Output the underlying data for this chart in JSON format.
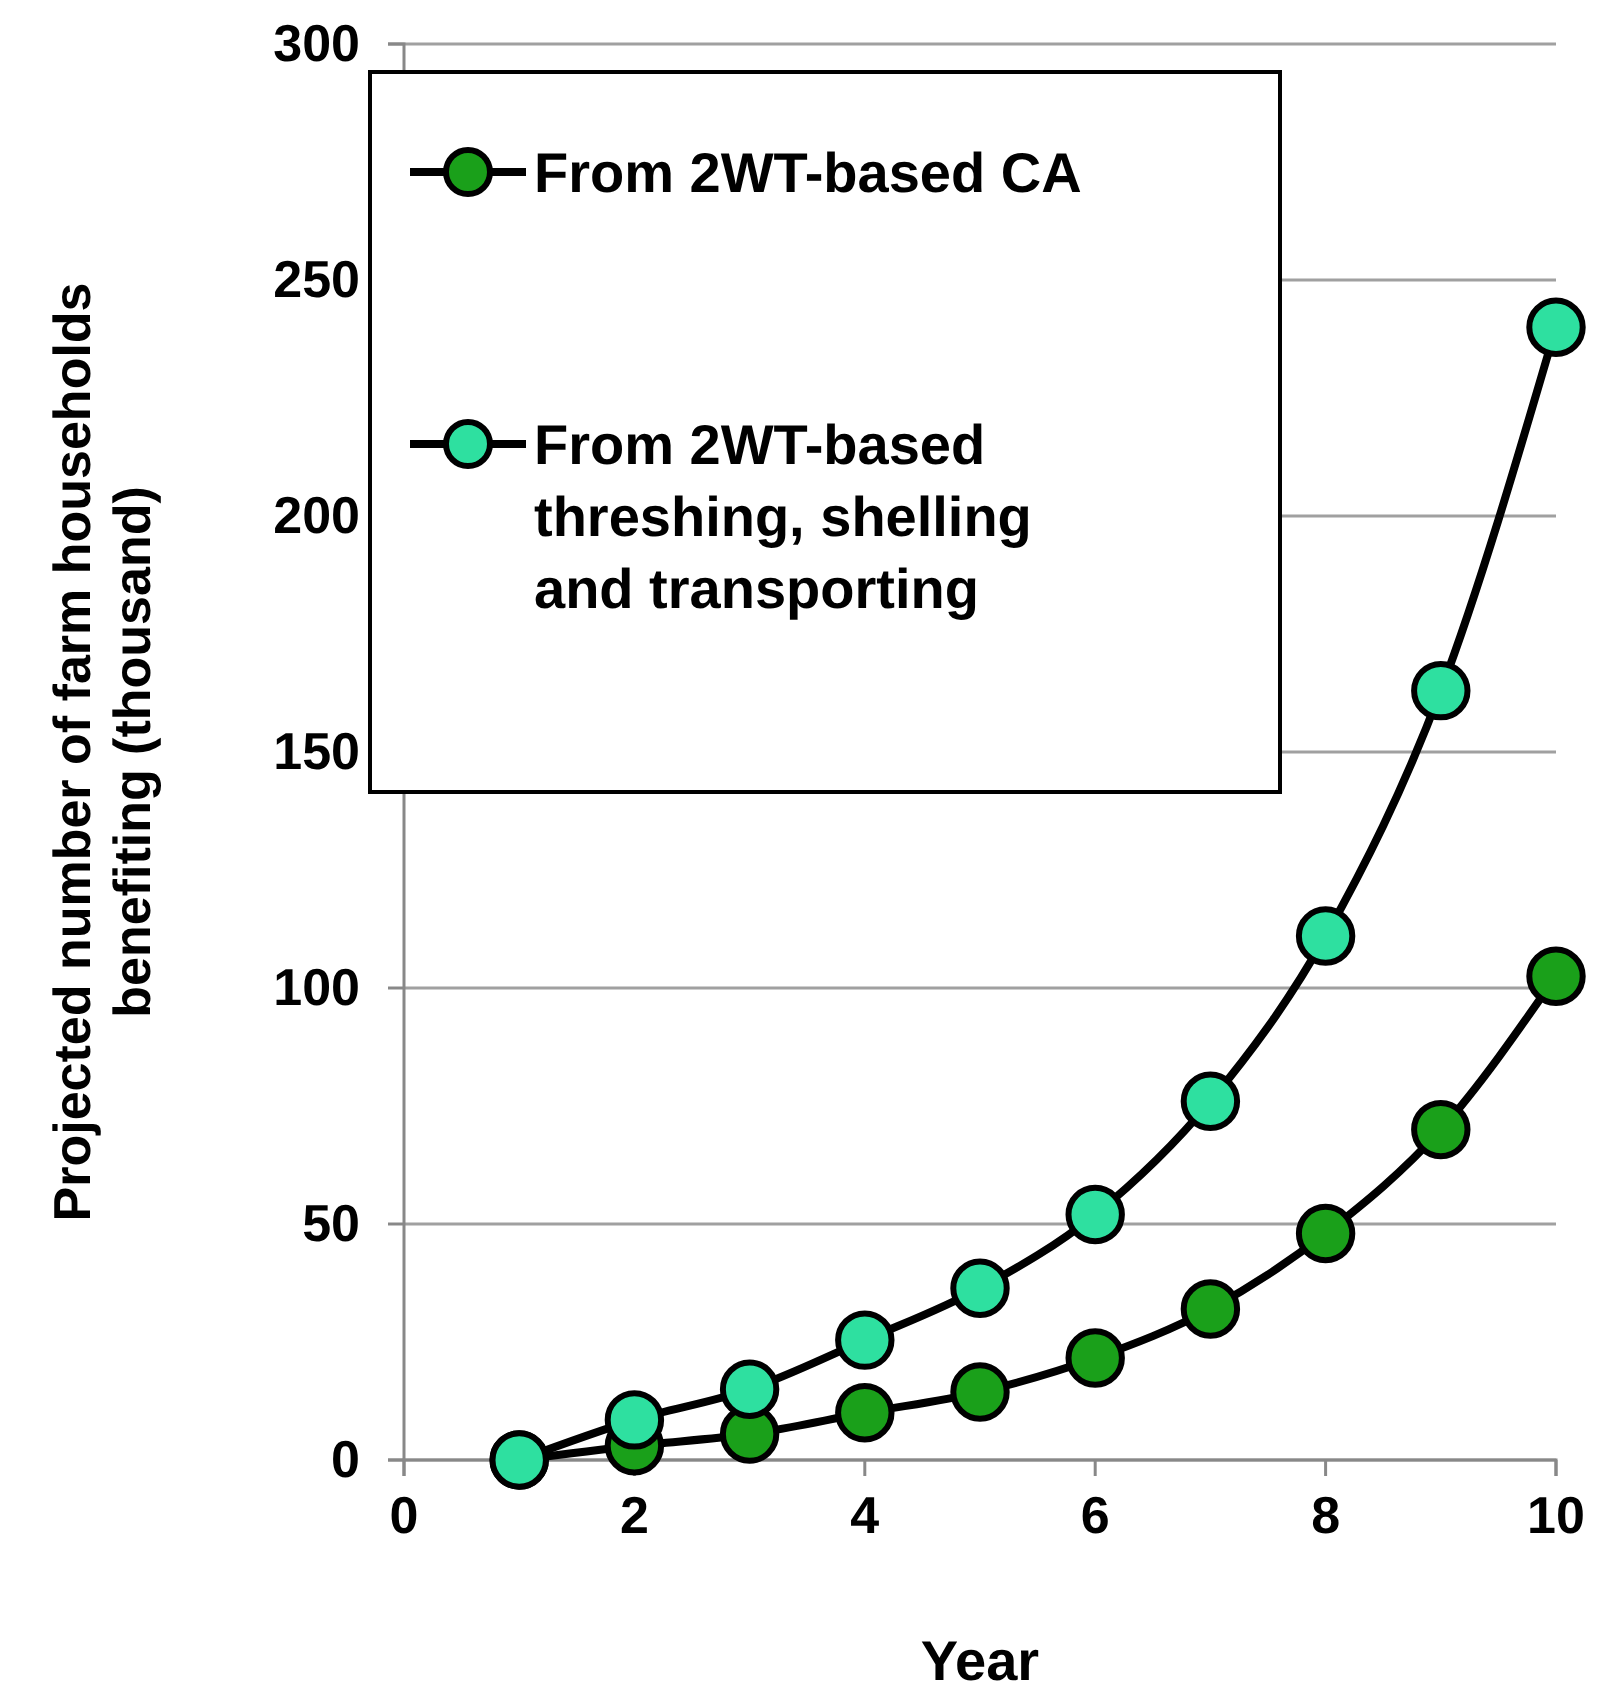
{
  "chart_data": {
    "type": "line",
    "xlabel": "Year",
    "ylabel": "Projected number of farm households benefiting (thousand)",
    "x": [
      1,
      2,
      3,
      4,
      5,
      6,
      7,
      8,
      9,
      10
    ],
    "series": [
      {
        "name": "From 2WT-based CA",
        "color": "#1aa01a",
        "values": [
          0,
          3,
          5.5,
          10,
          14.4,
          21.6,
          32,
          48,
          70,
          102.5
        ]
      },
      {
        "name": "From 2WT-based threshing, shelling and transporting",
        "color": "#2ee0a0",
        "values": [
          0,
          8.5,
          15,
          25.4,
          36.4,
          52,
          76,
          111,
          163,
          240
        ]
      }
    ],
    "xlim": [
      0,
      10
    ],
    "xticks": [
      0,
      2,
      4,
      6,
      8,
      10
    ],
    "ylim": [
      0,
      300
    ],
    "yticks": [
      0,
      50,
      100,
      150,
      200,
      250,
      300
    ],
    "grid": "y",
    "legend": "top left",
    "marker": "circle",
    "line_style": "solid"
  }
}
